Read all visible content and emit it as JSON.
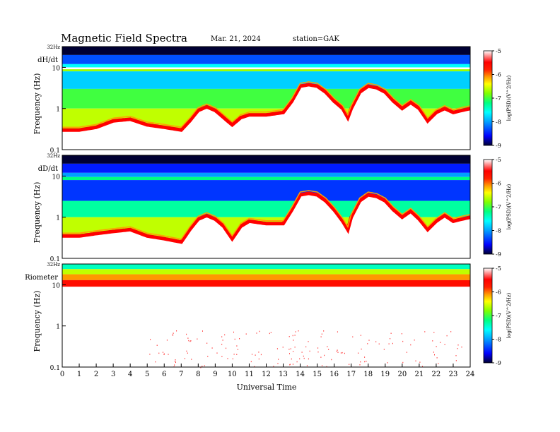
{
  "header": {
    "title": "Magnetic  Field  Spectra",
    "date": "Mar. 21, 2024",
    "station": "station=GAK"
  },
  "chart_data": {
    "type": "heatmap",
    "x": {
      "label": "Universal Time",
      "range": [
        0,
        24
      ],
      "ticks": [
        "0",
        "1",
        "2",
        "3",
        "4",
        "5",
        "6",
        "7",
        "8",
        "9",
        "10",
        "11",
        "12",
        "13",
        "14",
        "15",
        "16",
        "17",
        "18",
        "19",
        "20",
        "21",
        "22",
        "23",
        "24"
      ]
    },
    "y": {
      "label": "Frequency  (Hz)",
      "scale": "log",
      "range": [
        0.1,
        32
      ],
      "tick_labels": [
        "32Hz",
        "10",
        "1",
        "0.1"
      ],
      "tick_values": [
        32,
        10,
        1,
        0.1
      ]
    },
    "colorbar": {
      "label": "log(PSD)(V^2/Hz)",
      "range": [
        -9,
        -5
      ],
      "ticks": [
        "-5",
        "-6",
        "-7",
        "-8",
        "-9"
      ],
      "colors": [
        "#000033",
        "#0000ff",
        "#00a0ff",
        "#00ffff",
        "#00ff80",
        "#80ff00",
        "#ffff00",
        "#ffa000",
        "#ff2000",
        "#ff0000",
        "#ffffff"
      ]
    },
    "panels": [
      {
        "name": "dH/dt",
        "bands": [
          {
            "fmin": 20,
            "fmax": 32,
            "level": -9
          },
          {
            "fmin": 12,
            "fmax": 20,
            "level": -8.3
          },
          {
            "fmin": 10,
            "fmax": 12,
            "level": -7.6
          },
          {
            "fmin": 8,
            "fmax": 9,
            "level": -6.7
          },
          {
            "fmin": 3,
            "fmax": 8,
            "level": -7.8
          },
          {
            "fmin": 1,
            "fmax": 3,
            "level": -7.0
          }
        ],
        "boundary_hz": [
          [
            0,
            0.3
          ],
          [
            1,
            0.3
          ],
          [
            2,
            0.35
          ],
          [
            3,
            0.5
          ],
          [
            4,
            0.55
          ],
          [
            5,
            0.4
          ],
          [
            6,
            0.35
          ],
          [
            7,
            0.3
          ],
          [
            7.5,
            0.5
          ],
          [
            8,
            0.9
          ],
          [
            8.5,
            1.1
          ],
          [
            9,
            0.9
          ],
          [
            9.5,
            0.6
          ],
          [
            10,
            0.4
          ],
          [
            10.5,
            0.6
          ],
          [
            11,
            0.7
          ],
          [
            12,
            0.7
          ],
          [
            13,
            0.8
          ],
          [
            13.5,
            1.5
          ],
          [
            14,
            3.5
          ],
          [
            14.5,
            3.8
          ],
          [
            15,
            3.5
          ],
          [
            15.5,
            2.5
          ],
          [
            16,
            1.5
          ],
          [
            16.5,
            1.0
          ],
          [
            16.8,
            0.6
          ],
          [
            17,
            1.0
          ],
          [
            17.5,
            2.5
          ],
          [
            18,
            3.5
          ],
          [
            18.5,
            3.2
          ],
          [
            19,
            2.5
          ],
          [
            19.5,
            1.5
          ],
          [
            20,
            1.0
          ],
          [
            20.5,
            1.4
          ],
          [
            21,
            1.0
          ],
          [
            21.5,
            0.5
          ],
          [
            22,
            0.8
          ],
          [
            22.5,
            1.0
          ],
          [
            23,
            0.8
          ],
          [
            23.5,
            0.9
          ],
          [
            24,
            1.0
          ]
        ]
      },
      {
        "name": "dD/dt",
        "bands": [
          {
            "fmin": 20,
            "fmax": 32,
            "level": -9
          },
          {
            "fmin": 12,
            "fmax": 20,
            "level": -8.5
          },
          {
            "fmin": 9.5,
            "fmax": 12,
            "level": -8.0
          },
          {
            "fmin": 8,
            "fmax": 9.5,
            "level": -7.2
          },
          {
            "fmin": 2.5,
            "fmax": 8,
            "level": -8.4
          },
          {
            "fmin": 1,
            "fmax": 2.5,
            "level": -7.3
          }
        ],
        "boundary_hz": [
          [
            0,
            0.35
          ],
          [
            1,
            0.35
          ],
          [
            2,
            0.4
          ],
          [
            3,
            0.45
          ],
          [
            4,
            0.5
          ],
          [
            5,
            0.35
          ],
          [
            6,
            0.3
          ],
          [
            7,
            0.25
          ],
          [
            7.5,
            0.5
          ],
          [
            8,
            0.9
          ],
          [
            8.5,
            1.1
          ],
          [
            9,
            0.9
          ],
          [
            9.5,
            0.6
          ],
          [
            10,
            0.3
          ],
          [
            10.5,
            0.6
          ],
          [
            11,
            0.8
          ],
          [
            12,
            0.7
          ],
          [
            13,
            0.7
          ],
          [
            13.5,
            1.5
          ],
          [
            14,
            3.5
          ],
          [
            14.5,
            3.8
          ],
          [
            15,
            3.5
          ],
          [
            15.5,
            2.5
          ],
          [
            16,
            1.5
          ],
          [
            16.5,
            0.8
          ],
          [
            16.8,
            0.5
          ],
          [
            17,
            1.0
          ],
          [
            17.5,
            2.5
          ],
          [
            18,
            3.5
          ],
          [
            18.5,
            3.2
          ],
          [
            19,
            2.5
          ],
          [
            19.5,
            1.5
          ],
          [
            20,
            1.0
          ],
          [
            20.5,
            1.4
          ],
          [
            21,
            0.9
          ],
          [
            21.5,
            0.5
          ],
          [
            22,
            0.8
          ],
          [
            22.5,
            1.1
          ],
          [
            23,
            0.8
          ],
          [
            23.5,
            0.9
          ],
          [
            24,
            1.0
          ]
        ]
      },
      {
        "name": "Riometer",
        "bands": [
          {
            "fmin": 24,
            "fmax": 32,
            "level": -7.4
          },
          {
            "fmin": 18,
            "fmax": 24,
            "level": -6.6
          },
          {
            "fmin": 13,
            "fmax": 18,
            "level": -6.1
          },
          {
            "fmin": 9,
            "fmax": 13,
            "level": -5.6
          }
        ],
        "boundary_hz": [
          [
            0,
            9
          ],
          [
            24,
            9
          ]
        ]
      }
    ]
  }
}
